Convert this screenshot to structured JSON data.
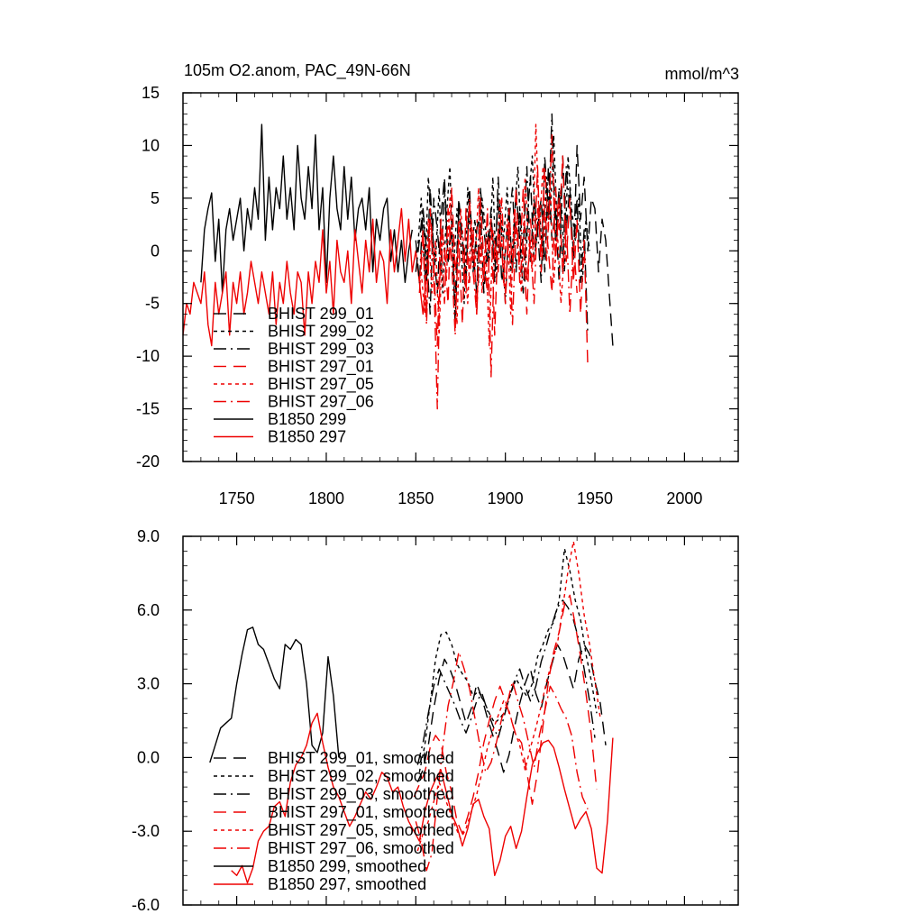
{
  "colors": {
    "black": "#000000",
    "red": "#ee0000"
  },
  "chart_data": [
    {
      "type": "line",
      "title": "105m O2.anom, PAC_49N-66N",
      "units": "mmol/m^3",
      "xlabel": "",
      "ylabel": "",
      "xlim": [
        1720,
        2030
      ],
      "ylim": [
        -20,
        15
      ],
      "xticks": [
        1750,
        1800,
        1850,
        1900,
        1950,
        2000
      ],
      "yticks": [
        -20,
        -15,
        -10,
        -5,
        0,
        5,
        10,
        15
      ],
      "ytick_labels": [
        "-20",
        "-15",
        "-10",
        "-5",
        "0",
        "5",
        "10",
        "15"
      ],
      "legend": [
        {
          "label": "BHIST 299_01",
          "color": "black",
          "dash": "long"
        },
        {
          "label": "BHIST 299_02",
          "color": "black",
          "dash": "short"
        },
        {
          "label": "BHIST 299_03",
          "color": "black",
          "dash": "dashdot"
        },
        {
          "label": "BHIST 297_01",
          "color": "red",
          "dash": "long"
        },
        {
          "label": "BHIST 297_05",
          "color": "red",
          "dash": "short"
        },
        {
          "label": "BHIST 297_06",
          "color": "red",
          "dash": "dashdot"
        },
        {
          "label": "B1850 299",
          "color": "black",
          "dash": "solid"
        },
        {
          "label": "B1850 297",
          "color": "red",
          "dash": "solid"
        }
      ],
      "series": [
        {
          "name": "B1850 299",
          "color": "black",
          "dash": "solid",
          "x0": 1730,
          "step": 2,
          "values": [
            -3,
            2,
            4,
            5.5,
            -1,
            3,
            -4,
            2,
            4,
            1,
            3,
            5,
            0,
            4,
            2,
            6,
            3,
            12,
            1,
            7,
            2,
            6,
            4,
            9,
            3,
            6,
            2,
            10,
            5,
            3,
            8,
            4,
            11,
            2,
            6,
            -3,
            5,
            9,
            4,
            2,
            8,
            3,
            7,
            1,
            4,
            5,
            2,
            6,
            -2,
            3,
            1,
            4,
            5,
            -1,
            2,
            -2,
            1,
            -3,
            0,
            2
          ]
        },
        {
          "name": "B1850 297",
          "color": "red",
          "dash": "solid",
          "x0": 1720,
          "step": 2,
          "values": [
            -8,
            -5,
            -6,
            -3,
            -4,
            -5,
            -2,
            -7,
            -9,
            -3,
            -6,
            -4,
            -2,
            -8,
            -3,
            -5,
            -2,
            -6,
            -4,
            -1,
            -3,
            -5,
            -2,
            -4,
            -6,
            -2,
            -7,
            -3,
            -5,
            -1,
            -4,
            -6,
            -2,
            -3,
            -8,
            -2,
            -5,
            -1,
            -3,
            2,
            -4,
            -1,
            -6,
            1,
            -2,
            -3,
            0,
            -5,
            2,
            -1,
            -4,
            1,
            -2,
            3,
            -3,
            0,
            -1,
            -5,
            2,
            -2,
            1,
            4,
            -1,
            3,
            -2,
            0,
            -3,
            -6,
            -2,
            1
          ]
        },
        {
          "name": "BHIST 299_01",
          "color": "black",
          "dash": "long",
          "x0": 1850,
          "step": 2,
          "values": [
            -2,
            1,
            4,
            -3,
            6,
            0,
            -4,
            3,
            7,
            -1,
            2,
            -5,
            5,
            1,
            -3,
            6,
            -2,
            2,
            4,
            -4,
            1,
            3,
            -1,
            5,
            -3,
            0,
            4,
            -2,
            6,
            1,
            -4,
            3,
            7,
            -1,
            2,
            5,
            -2,
            8,
            1,
            4,
            -3,
            9,
            2,
            6,
            -1,
            10,
            3,
            7,
            0,
            5,
            4,
            -2,
            3,
            1,
            -4,
            -9
          ]
        },
        {
          "name": "BHIST 299_02",
          "color": "black",
          "dash": "short",
          "x0": 1851,
          "step": 2,
          "values": [
            0,
            5,
            -3,
            7,
            2,
            -1,
            6,
            -4,
            3,
            8,
            -2,
            4,
            1,
            -5,
            6,
            0,
            3,
            -3,
            5,
            2,
            -1,
            7,
            -3,
            4,
            1,
            6,
            -2,
            3,
            8,
            0,
            -3,
            5,
            9,
            1,
            4,
            -1,
            7,
            3,
            11,
            2,
            6,
            -2,
            9,
            4,
            1,
            5,
            -3,
            3,
            0
          ]
        },
        {
          "name": "BHIST 299_03",
          "color": "black",
          "dash": "dashdot",
          "x0": 1850,
          "step": 2,
          "values": [
            1,
            -3,
            4,
            0,
            -6,
            5,
            2,
            -2,
            6,
            -1,
            3,
            -7,
            4,
            1,
            -2,
            5,
            0,
            -4,
            6,
            2,
            -1,
            4,
            -3,
            7,
            1,
            -5,
            3,
            6,
            -2,
            4,
            0,
            8,
            -1,
            5,
            2,
            -3,
            9,
            3,
            13,
            1,
            6,
            -2,
            8,
            4,
            0,
            5,
            -3,
            2,
            -8
          ]
        },
        {
          "name": "BHIST 297_01",
          "color": "red",
          "dash": "long",
          "x0": 1852,
          "step": 2,
          "values": [
            -3,
            2,
            -6,
            4,
            -1,
            -9,
            3,
            0,
            -5,
            6,
            -2,
            1,
            -7,
            4,
            -3,
            2,
            -6,
            5,
            -1,
            -4,
            3,
            -8,
            2,
            0,
            -5,
            4,
            -2,
            6,
            -3,
            1,
            -6,
            3,
            -1,
            8,
            -2,
            4,
            0,
            -4,
            6,
            2,
            9,
            -1,
            5,
            -3,
            3,
            -6,
            1,
            -11
          ]
        },
        {
          "name": "BHIST 297_05",
          "color": "red",
          "dash": "short",
          "x0": 1853,
          "step": 2,
          "values": [
            -2,
            -6,
            3,
            -4,
            1,
            -8,
            2,
            -3,
            5,
            -1,
            -7,
            4,
            0,
            -5,
            3,
            -2,
            6,
            -4,
            1,
            -9,
            2,
            -1,
            5,
            -3,
            3,
            -6,
            4,
            0,
            -4,
            7,
            1,
            -2,
            12,
            2,
            8,
            -1,
            6,
            -3,
            2,
            -5,
            0
          ]
        },
        {
          "name": "BHIST 297_06",
          "color": "red",
          "dash": "dashdot",
          "x0": 1852,
          "step": 2,
          "values": [
            -4,
            1,
            -7,
            3,
            -2,
            -15,
            2,
            -5,
            4,
            -1,
            -8,
            3,
            0,
            -4,
            5,
            -2,
            -6,
            2,
            -3,
            4,
            -12,
            1,
            -2,
            5,
            -4,
            2,
            -7,
            3,
            -1,
            6,
            -3,
            1,
            -5,
            4,
            0,
            8,
            2,
            11,
            -1,
            5,
            -2,
            3,
            -6,
            1,
            -4
          ]
        }
      ]
    },
    {
      "type": "line",
      "title": "",
      "xlabel": "",
      "ylabel": "",
      "xlim": [
        1720,
        2030
      ],
      "ylim": [
        -6,
        9
      ],
      "xticks": [
        1750,
        1800,
        1850,
        1900,
        1950,
        2000
      ],
      "yticks": [
        -6,
        -3,
        0,
        3,
        6,
        9
      ],
      "ytick_labels": [
        "-6.0",
        "-3.0",
        "0.0",
        "3.0",
        "6.0",
        "9.0"
      ],
      "legend": [
        {
          "label": "BHIST 299_01, smoothed",
          "color": "black",
          "dash": "long"
        },
        {
          "label": "BHIST 299_02, smoothed",
          "color": "black",
          "dash": "short"
        },
        {
          "label": "BHIST 299_03, smoothed",
          "color": "black",
          "dash": "dashdot"
        },
        {
          "label": "BHIST 297_01, smoothed",
          "color": "red",
          "dash": "long"
        },
        {
          "label": "BHIST 297_05, smoothed",
          "color": "red",
          "dash": "short"
        },
        {
          "label": "BHIST 297_06, smoothed",
          "color": "red",
          "dash": "dashdot"
        },
        {
          "label": "B1850 299, smoothed",
          "color": "black",
          "dash": "solid"
        },
        {
          "label": "B1850 297, smoothed",
          "color": "red",
          "dash": "solid"
        }
      ],
      "series": [
        {
          "name": "B1850 299, smoothed",
          "color": "black",
          "dash": "solid",
          "x0": 1735,
          "step": 3,
          "values": [
            -0.2,
            0.5,
            1.2,
            1.4,
            1.6,
            3,
            4.2,
            5.2,
            5.3,
            4.6,
            4.4,
            3.8,
            3.2,
            2.8,
            4.6,
            4.4,
            4.8,
            4.6,
            3,
            0.5,
            0.2,
            1,
            4.1,
            2.5,
            0
          ]
        },
        {
          "name": "B1850 297, smoothed",
          "color": "red",
          "dash": "solid",
          "x0": 1747,
          "step": 3,
          "values": [
            -4.6,
            -4.8,
            -4.4,
            -5.1,
            -4.5,
            -3.4,
            -3,
            -2.8,
            -2,
            -1.8,
            -2.4,
            -1,
            -0.3,
            0,
            0.5,
            1.4,
            1.8,
            0.6,
            -0.4,
            -1.2,
            -1.6,
            -2.2,
            -2.8,
            -2.4,
            -1.9,
            -1.4,
            -1.7,
            -1.2,
            -0.6,
            -0.8,
            -1.4,
            -1.2,
            -2,
            -2.6,
            -3,
            -3.4,
            -2.2,
            -1.4,
            -0.9,
            -0.5,
            -1.4,
            -2.3,
            -2.8,
            -3.6,
            -2.9,
            -1.9,
            -1.7,
            -2.4,
            -2.9,
            -4.8,
            -4.2,
            -3.2,
            -2.8,
            -3.7,
            -3,
            -1.6,
            -0.3,
            0.2,
            0.6,
            0.7,
            0.4,
            -0.4,
            -1.3,
            -2.1,
            -2.9,
            -2.5,
            -2.2,
            -2.9,
            -4.5,
            -4.7,
            -2.6,
            0.8
          ]
        },
        {
          "name": "BHIST 299_01, smoothed",
          "color": "black",
          "dash": "long",
          "x0": 1851,
          "step": 3,
          "values": [
            -1,
            -0.5,
            0.5,
            2,
            3.2,
            4,
            3.6,
            3,
            2.2,
            1.4,
            2,
            3,
            2.4,
            1.6,
            0.9,
            0.2,
            -0.6,
            0.1,
            1.2,
            2.2,
            3,
            3.6,
            2.6,
            2,
            3,
            3.8,
            4.6,
            4.2,
            3.5,
            2.8,
            4,
            4.6,
            4.2,
            3.1,
            2.2,
            0.5
          ]
        },
        {
          "name": "BHIST 299_02, smoothed",
          "color": "black",
          "dash": "short",
          "x0": 1852,
          "step": 3,
          "values": [
            -0.6,
            0.5,
            2.2,
            4,
            5,
            5.1,
            4.6,
            3.8,
            3.4,
            3.1,
            2.5,
            2.7,
            2.3,
            1.8,
            1.4,
            1.6,
            1.9,
            2.6,
            3.2,
            2.8,
            2.5,
            3,
            4.1,
            4.6,
            5.2,
            5.5,
            6.4,
            8.5,
            7.6,
            6.4,
            5.6,
            4.2,
            3.1,
            1.8
          ]
        },
        {
          "name": "BHIST 299_03, smoothed",
          "color": "black",
          "dash": "dashdot",
          "x0": 1851,
          "step": 3,
          "values": [
            -0.3,
            0.6,
            1.8,
            2.9,
            3.6,
            3.1,
            2.6,
            2.1,
            1.5,
            1,
            1.6,
            2.3,
            2.6,
            1.9,
            1.3,
            0.8,
            1.6,
            2.4,
            3.1,
            3.6,
            2.9,
            2.3,
            2.9,
            3.9,
            4.6,
            5.4,
            6.1,
            6.4,
            6.1,
            5.6,
            4.8,
            3.6,
            2.3,
            0.8
          ]
        },
        {
          "name": "BHIST 297_01, smoothed",
          "color": "red",
          "dash": "long",
          "x0": 1849,
          "step": 3,
          "values": [
            -1.6,
            -1.1,
            -0.6,
            0.4,
            0.9,
            0.6,
            -0.6,
            -1.4,
            -2.6,
            -3.1,
            -2.4,
            -1.6,
            -0.6,
            0.6,
            1.5,
            2.3,
            2.9,
            2.3,
            1.6,
            0.9,
            0.6,
            -0.6,
            -1.9,
            -0.6,
            1.3,
            3.1,
            4.3,
            5.1,
            6.2,
            6.6,
            5.4,
            4.1,
            2.6,
            0.9,
            -1.3
          ]
        },
        {
          "name": "BHIST 297_05, smoothed",
          "color": "red",
          "dash": "short",
          "x0": 1851,
          "step": 3,
          "values": [
            -3.8,
            -3.1,
            -2.6,
            -1.8,
            -1,
            -1.6,
            -2.2,
            -2.8,
            -3.3,
            -2.9,
            -2.2,
            -1.5,
            -0.6,
            0.4,
            1.1,
            1.7,
            2.3,
            1.9,
            1.1,
            0.5,
            -0.5,
            0.4,
            1.2,
            2.1,
            3.1,
            3.9,
            4.6,
            6.1,
            7.6,
            8.8,
            7.5,
            5.8,
            4.6,
            3.1,
            1.6
          ]
        },
        {
          "name": "BHIST 297_06, smoothed",
          "color": "red",
          "dash": "dashdot",
          "x0": 1850,
          "step": 3,
          "values": [
            -2.6,
            -3.4,
            -4.6,
            -3.9,
            -1.6,
            0.4,
            2.1,
            3.1,
            4.3,
            3.6,
            2.8,
            1.6,
            0.4,
            -0.6,
            -0.2,
            0.6,
            1.6,
            2.2,
            3.1,
            2.3,
            1.6,
            0.6,
            -0.4,
            0.9,
            1.9,
            2.9,
            2.5,
            2,
            1.6,
            0.9,
            -0.6,
            -1.6,
            -2.1
          ]
        }
      ]
    }
  ]
}
